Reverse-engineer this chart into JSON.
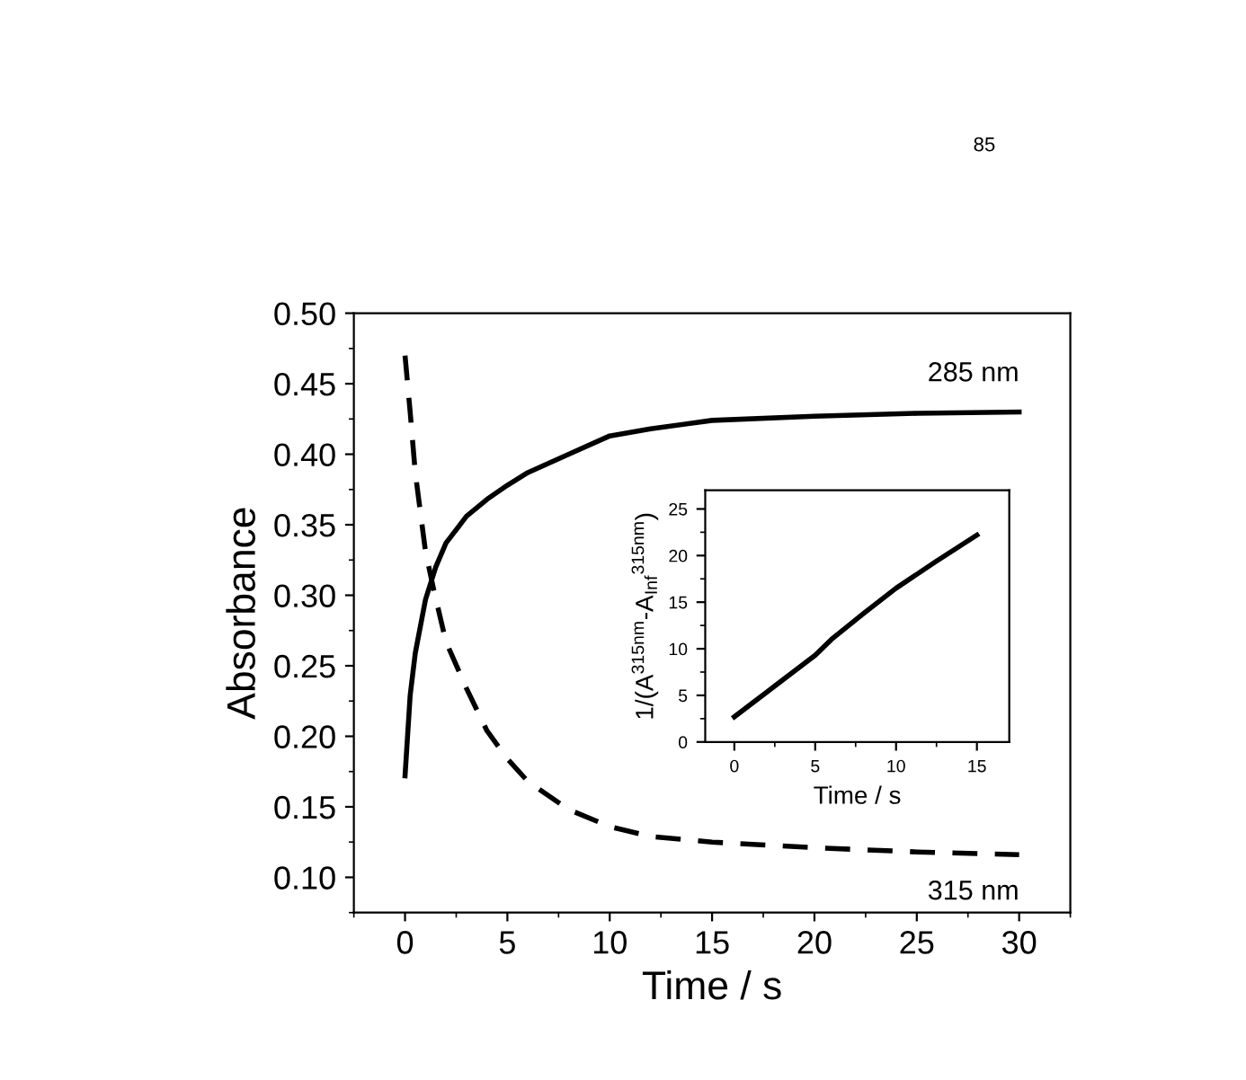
{
  "chart_data": [
    {
      "type": "line",
      "xlabel": "Time / s",
      "ylabel": "Absorbance",
      "xlim": [
        -2.5,
        32.5
      ],
      "ylim": [
        0.075,
        0.5
      ],
      "xticks": [
        0,
        5,
        10,
        15,
        20,
        25,
        30
      ],
      "yticks": [
        {
          "value": 0.1,
          "label": "0.10"
        },
        0.15,
        {
          "value": 0.2,
          "label": "0.20"
        },
        0.25,
        {
          "value": 0.3,
          "label": "0.30"
        },
        0.35,
        {
          "value": 0.4,
          "label": "0.40"
        },
        0.45,
        {
          "value": 0.5,
          "label": "0.50"
        }
      ],
      "grid": false,
      "legend": false,
      "annotations": [
        "85"
      ],
      "series": [
        {
          "name": "285 nm",
          "color": "#000000",
          "line_style": "solid",
          "x": [
            0,
            0.25,
            0.5,
            1,
            1.5,
            2,
            3,
            4,
            5,
            6,
            8,
            10,
            12,
            15,
            20,
            25,
            30
          ],
          "values": [
            0.172,
            0.229,
            0.259,
            0.297,
            0.32,
            0.337,
            0.356,
            0.368,
            0.378,
            0.387,
            0.4,
            0.413,
            0.418,
            0.424,
            0.427,
            0.429,
            0.43
          ]
        },
        {
          "name": "315 nm",
          "color": "#000000",
          "line_style": "dashed",
          "x": [
            0,
            0.25,
            0.5,
            1,
            1.4,
            2,
            3,
            4,
            5,
            6,
            8,
            10,
            12,
            15,
            20,
            25,
            30
          ],
          "values": [
            0.47,
            0.43,
            0.387,
            0.331,
            0.304,
            0.267,
            0.234,
            0.204,
            0.184,
            0.168,
            0.148,
            0.136,
            0.129,
            0.125,
            0.121,
            0.118,
            0.116
          ]
        }
      ]
    },
    {
      "type": "line",
      "xlabel": "Time / s",
      "ylabel": "1/(A$^{315nm}$-A$_{Inf}$$^{315nm}$)",
      "xlim": [
        -1.8,
        17
      ],
      "ylim": [
        0,
        27
      ],
      "xticks": [
        0,
        5,
        10,
        15
      ],
      "yticks": [
        0,
        5,
        10,
        15,
        20,
        25
      ],
      "grid": false,
      "legend": false,
      "series": [
        {
          "color": "#000000",
          "line_style": "solid",
          "x": [
            0,
            2.5,
            5,
            6,
            8,
            10,
            12.5,
            15
          ],
          "values": [
            2.7,
            6,
            9.3,
            11,
            13.8,
            16.5,
            19.4,
            22.2
          ]
        }
      ]
    }
  ]
}
